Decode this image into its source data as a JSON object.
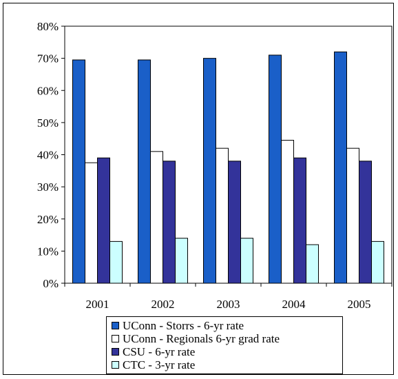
{
  "chart_data": {
    "type": "bar",
    "categories": [
      "2001",
      "2002",
      "2003",
      "2004",
      "2005"
    ],
    "series": [
      {
        "name": "UConn - Storrs - 6-yr rate",
        "color": "#1a5fc8",
        "values": [
          69.5,
          69.5,
          70,
          71,
          72
        ]
      },
      {
        "name": "UConn - Regionals 6-yr grad rate",
        "color": "#ffffff",
        "values": [
          37.5,
          41,
          42,
          44.5,
          42
        ]
      },
      {
        "name": "CSU - 6-yr rate",
        "color": "#33339a",
        "values": [
          39,
          38,
          38,
          39,
          38
        ]
      },
      {
        "name": "CTC - 3-yr rate",
        "color": "#ccffff",
        "values": [
          13,
          14,
          14,
          12,
          13
        ]
      }
    ],
    "ylim": [
      0,
      80
    ],
    "yticks": [
      "0%",
      "10%",
      "20%",
      "30%",
      "40%",
      "50%",
      "60%",
      "70%",
      "80%"
    ],
    "title": "",
    "xlabel": "",
    "ylabel": "",
    "grid": false,
    "legend": "bottom"
  }
}
